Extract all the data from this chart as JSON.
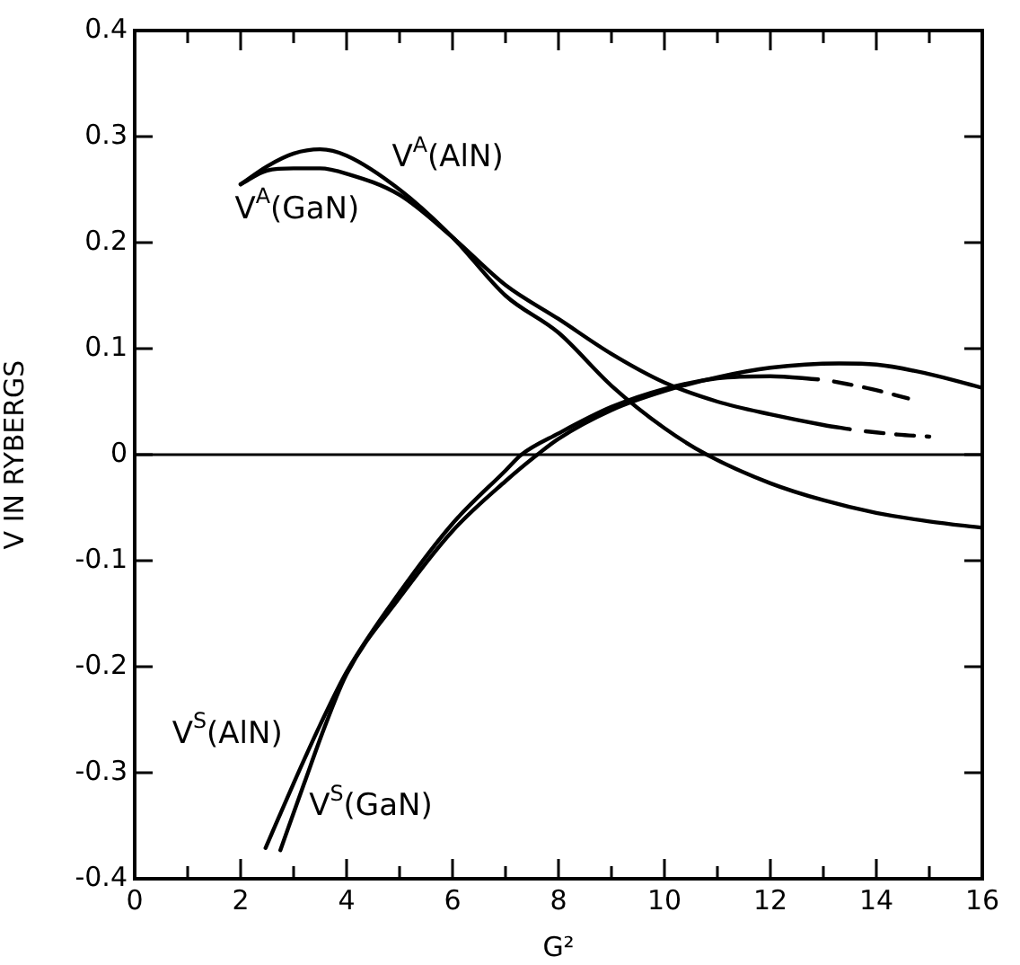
{
  "chart_data": {
    "type": "line",
    "xlabel": "G²",
    "ylabel": "V IN RYBERGS",
    "xlim": [
      0,
      16
    ],
    "ylim": [
      -0.4,
      0.4
    ],
    "xticks": [
      0,
      {
        "value": 1,
        "label": null
      },
      2,
      {
        "value": 3,
        "label": null
      },
      4,
      {
        "value": 5,
        "label": null
      },
      6,
      {
        "value": 7,
        "label": null
      },
      8,
      {
        "value": 9,
        "label": null
      },
      10,
      {
        "value": 11,
        "label": null
      },
      12,
      {
        "value": 13,
        "label": null
      },
      14,
      {
        "value": 15,
        "label": null
      },
      16
    ],
    "yticks": [
      -0.4,
      -0.3,
      -0.2,
      -0.1,
      0,
      0.1,
      0.2,
      0.3,
      0.4
    ],
    "grid": false,
    "legend": false,
    "marker": "none",
    "line_style": "solid",
    "ref_lines": [
      {
        "axis": "y",
        "value": 0,
        "color": "#000000"
      }
    ],
    "series": [
      {
        "name": "V$^{A}$(AlN)",
        "color": "#000000",
        "x": [
          2,
          2.5,
          3,
          3.5,
          4,
          5,
          6,
          7,
          8,
          9,
          10,
          10.8,
          12,
          13,
          14,
          15,
          16
        ],
        "values": [
          0.255,
          0.272,
          0.284,
          0.288,
          0.282,
          0.25,
          0.205,
          0.15,
          0.115,
          0.065,
          0.025,
          0,
          -0.027,
          -0.043,
          -0.055,
          -0.063,
          -0.069
        ]
      },
      {
        "name": "V$^{A}$(GaN)",
        "color": "#000000",
        "x": [
          2,
          2.5,
          3,
          3.5,
          4,
          5,
          6,
          7,
          8,
          9,
          10,
          11,
          12,
          13,
          13.5
        ],
        "values": [
          0.255,
          0.268,
          0.27,
          0.27,
          0.265,
          0.245,
          0.205,
          0.16,
          0.128,
          0.095,
          0.068,
          0.05,
          0.038,
          0.028,
          0.024
        ]
      },
      {
        "color": "#000000",
        "line_style": "dashed",
        "x": [
          13.8,
          14.4,
          15
        ],
        "values": [
          0.022,
          0.019,
          0.017
        ]
      },
      {
        "name": "V$^{S}$(AlN)",
        "color": "#000000",
        "x": [
          2.47,
          3,
          3.5,
          4,
          5,
          6,
          7,
          7.3,
          8,
          9,
          10,
          11,
          12,
          12.9
        ],
        "values": [
          -0.371,
          -0.31,
          -0.255,
          -0.205,
          -0.13,
          -0.065,
          -0.015,
          0,
          0.02,
          0.045,
          0.062,
          0.072,
          0.074,
          0.071
        ]
      },
      {
        "color": "#000000",
        "line_style": "dashed",
        "x": [
          13.2,
          13.9,
          14.6
        ],
        "values": [
          0.069,
          0.062,
          0.053
        ]
      },
      {
        "name": "V$^{S}$(GaN)",
        "color": "#000000",
        "x": [
          2.75,
          3.2,
          3.6,
          4,
          5,
          6,
          7,
          7.6,
          8,
          9,
          10,
          11,
          12,
          13.3,
          14,
          15,
          16
        ],
        "values": [
          -0.373,
          -0.31,
          -0.255,
          -0.207,
          -0.135,
          -0.072,
          -0.025,
          0,
          0.015,
          0.042,
          0.06,
          0.073,
          0.082,
          0.086,
          0.085,
          0.076,
          0.063
        ]
      }
    ]
  }
}
